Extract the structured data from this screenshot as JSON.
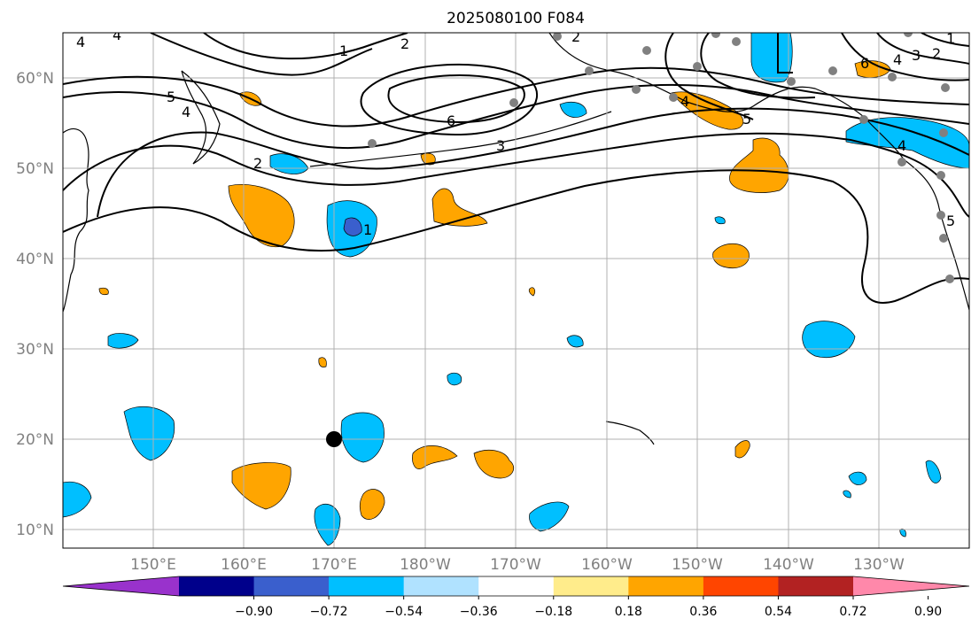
{
  "title": "2025080100 F084",
  "map": {
    "lat_labels": [
      "60°N",
      "50°N",
      "40°N",
      "30°N",
      "20°N",
      "10°N"
    ],
    "lon_labels": [
      "150°E",
      "160°E",
      "170°E",
      "180°W",
      "170°W",
      "160°W",
      "150°W",
      "140°W",
      "130°W"
    ],
    "grid": true,
    "marker": {
      "lat": 20,
      "lon": "170°E",
      "color": "#000000"
    }
  },
  "contour_labels": [
    "4",
    "4",
    "1",
    "2",
    "5",
    "4",
    "2",
    "6",
    "3",
    "1",
    "2",
    "6",
    "4",
    "3",
    "2",
    "1",
    "4",
    "5",
    "4",
    "5"
  ],
  "colorbar": {
    "ticks": [
      "−0.90",
      "−0.72",
      "−0.54",
      "−0.36",
      "−0.18",
      "0.18",
      "0.36",
      "0.54",
      "0.72",
      "0.90"
    ],
    "colors": [
      "#9932cc",
      "#00008b",
      "#3a5fcd",
      "#00bfff",
      "#b0e2ff",
      "#ffffff",
      "#ffec8b",
      "#ffa500",
      "#ff4500",
      "#b22222",
      "#ff88aa"
    ]
  },
  "colors": {
    "positive": "#ffa500",
    "negative": "#00bfff",
    "strong_negative": "#3a5fcd",
    "station": "#808080",
    "contour": "#000000",
    "grid": "#b0b0b0"
  }
}
